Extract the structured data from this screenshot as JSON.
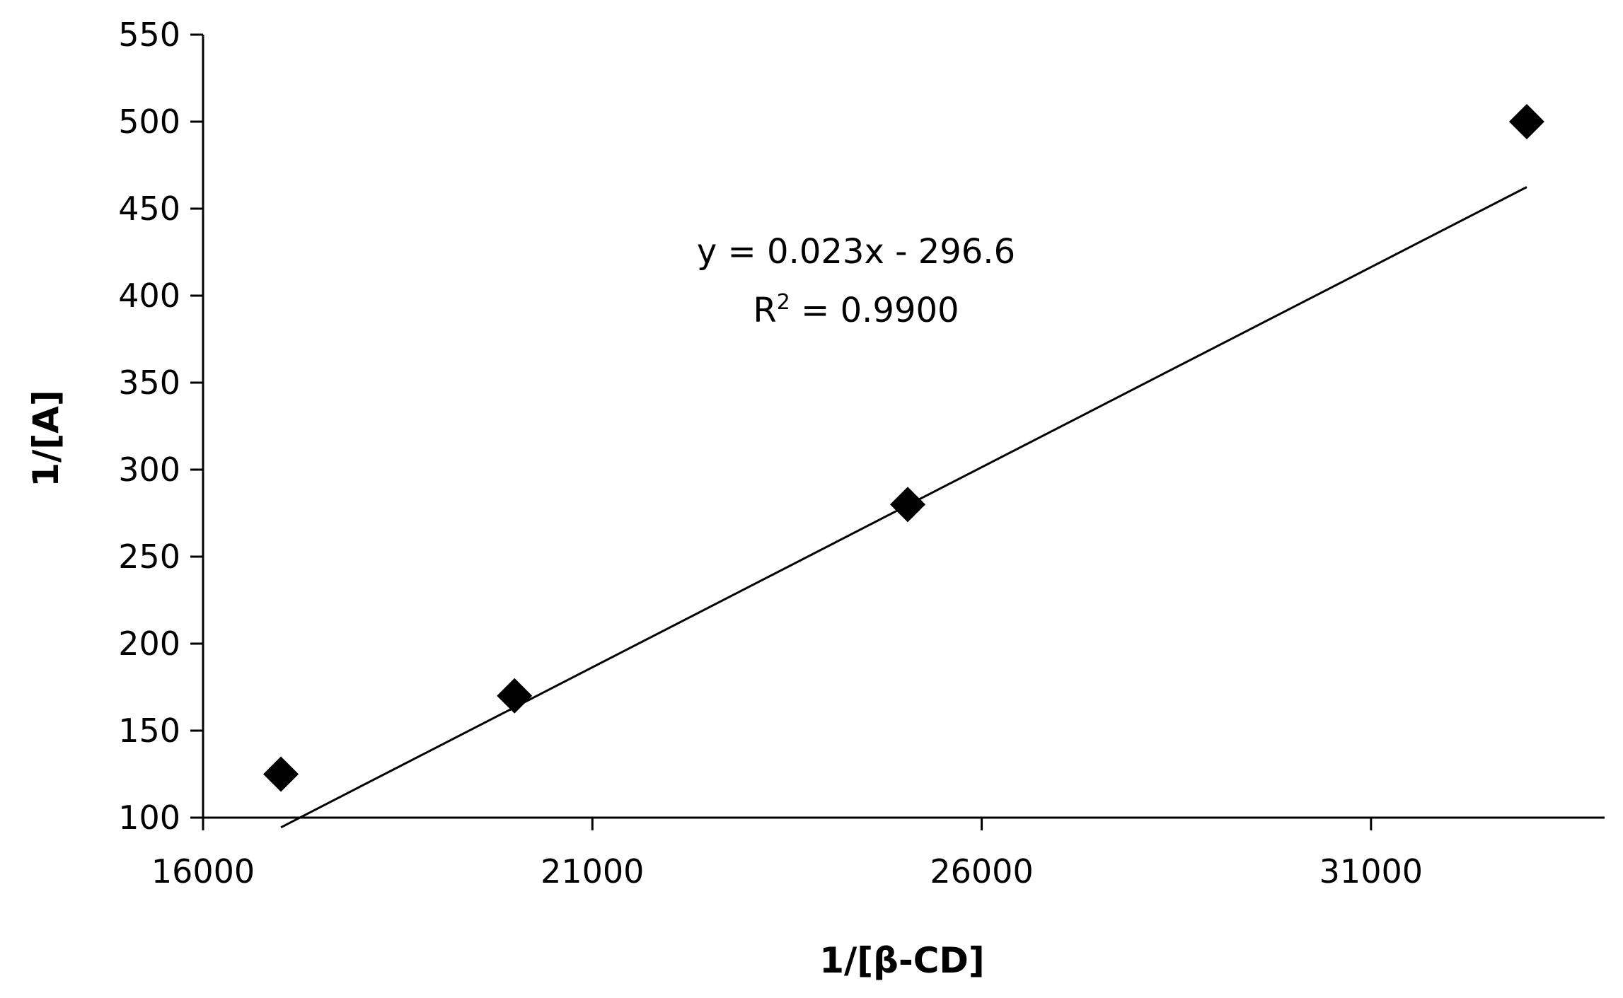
{
  "chart_data": {
    "type": "scatter",
    "xlabel": "1/[β-CD]",
    "ylabel": "1/[A]",
    "xlim": [
      16000,
      34000
    ],
    "ylim": [
      100,
      550
    ],
    "x_ticks": [
      16000,
      21000,
      26000,
      31000
    ],
    "y_ticks": [
      100,
      150,
      200,
      250,
      300,
      350,
      400,
      450,
      500,
      550
    ],
    "grid": false,
    "legend": "none",
    "marker": "diamond",
    "marker_color": "#000000",
    "series": [
      {
        "x": [
          17000,
          20000,
          25050,
          33000
        ],
        "y": [
          125,
          170,
          280,
          500
        ]
      }
    ],
    "trendline": {
      "slope": 0.023,
      "intercept": -296.6,
      "x_range": [
        17000,
        33000
      ],
      "equation": "y = 0.023x - 296.6",
      "r2_prefix": "R",
      "r2_sup": "2",
      "r2_value": " = 0.9900"
    }
  }
}
